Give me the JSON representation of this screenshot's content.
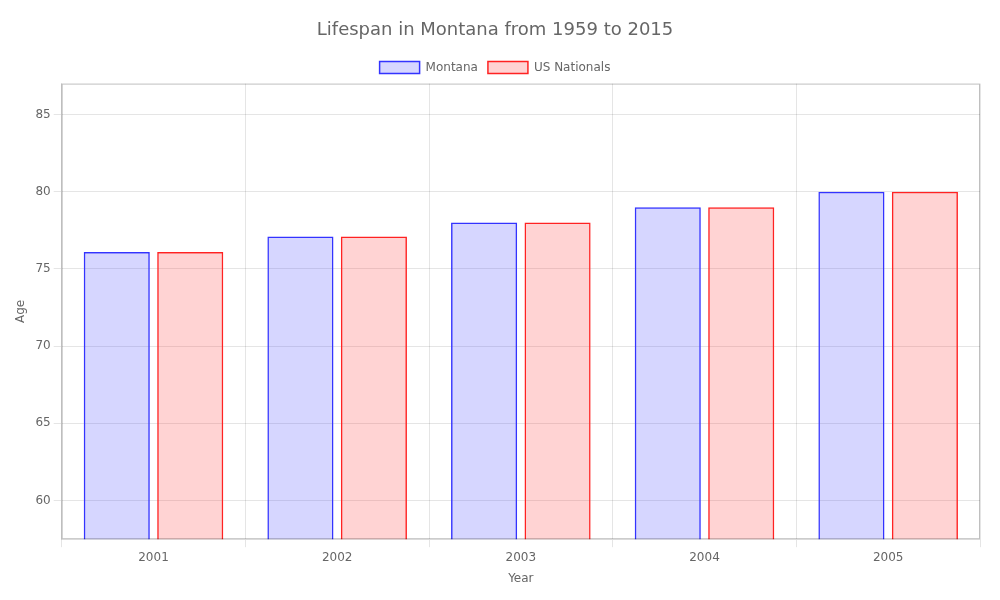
{
  "chart_data": {
    "type": "bar",
    "title": "Lifespan in Montana from 1959 to 2015",
    "xlabel": "Year",
    "ylabel": "Age",
    "categories": [
      "2001",
      "2002",
      "2003",
      "2004",
      "2005"
    ],
    "series": [
      {
        "name": "Montana",
        "color": "#3333ff",
        "values": [
          76.1,
          77.1,
          78.0,
          79.0,
          80.0
        ]
      },
      {
        "name": "US Nationals",
        "color": "#ff2222",
        "values": [
          76.1,
          77.1,
          78.0,
          79.0,
          80.0
        ]
      }
    ],
    "ylim": [
      57.5,
      87
    ],
    "yticks": [
      60,
      65,
      70,
      75,
      80,
      85
    ],
    "grid": true,
    "legend": "top"
  }
}
